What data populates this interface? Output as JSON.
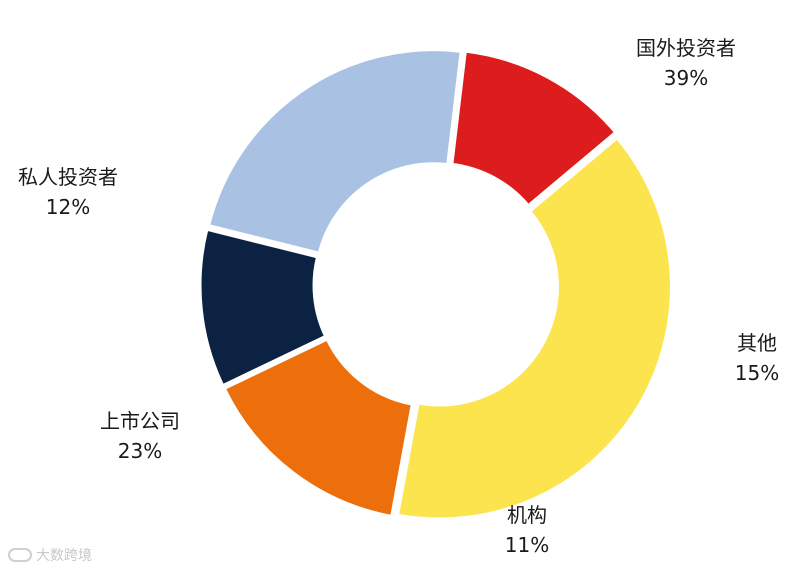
{
  "chart_data": {
    "type": "pie",
    "donut": true,
    "start_angle_deg": -40,
    "categories": [
      "国外投资者",
      "其他",
      "机构",
      "上市公司",
      "私人投资者"
    ],
    "values": [
      39,
      15,
      11,
      23,
      12
    ],
    "labels": [
      {
        "name": "国外投资者",
        "value": "39%"
      },
      {
        "name": "其他",
        "value": "15%"
      },
      {
        "name": "机构",
        "value": "11%"
      },
      {
        "name": "上市公司",
        "value": "23%"
      },
      {
        "name": "私人投资者",
        "value": "12%"
      }
    ],
    "colors": [
      "#fbe44e",
      "#ec6f0c",
      "#0c2242",
      "#a9c2e4",
      "#dc1c1d"
    ]
  },
  "watermark": {
    "text": "大数跨境"
  }
}
